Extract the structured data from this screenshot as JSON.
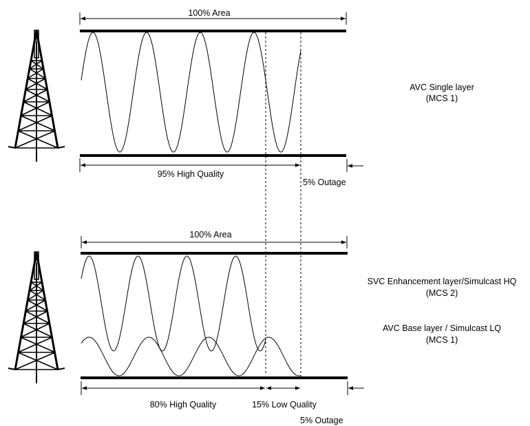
{
  "top": {
    "area_label": "100% Area",
    "high_label": "95% High Quality",
    "outage_label": "5% Outage",
    "layer_title": "AVC Single layer",
    "layer_mcs": "(MCS 1)"
  },
  "bottom": {
    "area_label": "100% Area",
    "high_label": "80% High Quality",
    "low_label": "15% Low Quality",
    "outage_label": "5% Outage",
    "enh_title": "SVC Enhancement layer/Simulcast HQ",
    "enh_mcs": "(MCS 2)",
    "base_title": "AVC Base layer / Simulcast LQ",
    "base_mcs": "(MCS 1)"
  },
  "icons": [
    "tower-icon-top",
    "tower-icon-bottom"
  ]
}
